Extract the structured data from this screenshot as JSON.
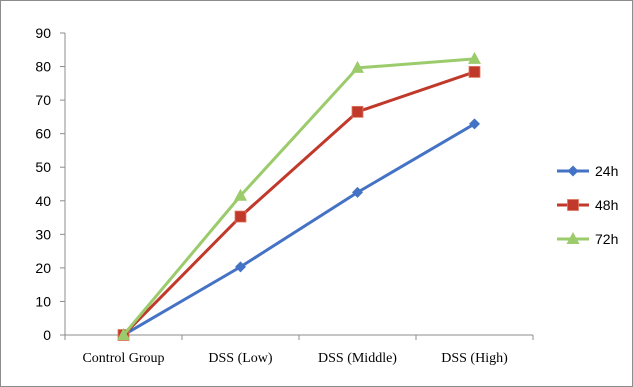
{
  "chart_data": {
    "type": "line",
    "title": "",
    "xlabel": "",
    "ylabel": "",
    "categories": [
      "Control Group",
      "DSS (Low)",
      "DSS (Middle)",
      "DSS (High)"
    ],
    "ylim": [
      0,
      90
    ],
    "yticks": [
      0,
      10,
      20,
      30,
      40,
      50,
      60,
      70,
      80,
      90
    ],
    "grid": false,
    "legend_position": "right",
    "series": [
      {
        "name": "24h",
        "color": "#4472C4",
        "marker": "diamond",
        "values": [
          0,
          20.3,
          42.5,
          62.9
        ]
      },
      {
        "name": "48h",
        "color": "#C0392B",
        "marker": "square",
        "values": [
          0,
          35.3,
          66.5,
          78.4
        ]
      },
      {
        "name": "72h",
        "color": "#9BCB6B",
        "marker": "triangle",
        "values": [
          0,
          41.5,
          79.6,
          82.3
        ]
      }
    ]
  }
}
